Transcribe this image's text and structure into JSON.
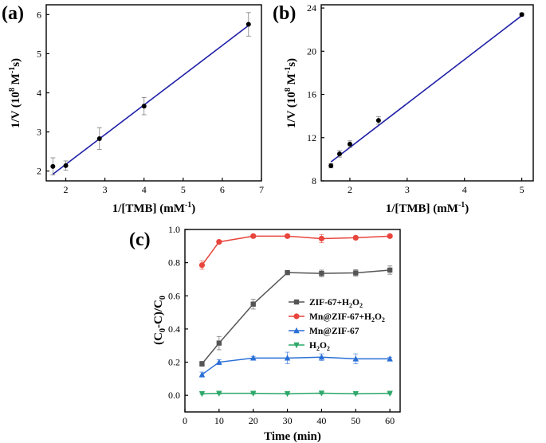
{
  "chart_data": [
    {
      "type": "scatter",
      "panel_label": "(a)",
      "xlabel": "1/[TMB] (mM",
      "xlabel_sup": "-1",
      "xlabel_end": ")",
      "ylabel": "1/V (10",
      "ylabel_sup": "8",
      "ylabel_end": " M",
      "ylabel_sup2": "-1",
      "ylabel_tail": "s)",
      "xlim": [
        1.5,
        7
      ],
      "ylim": [
        1.75,
        6.25
      ],
      "xticks": [
        2,
        3,
        4,
        5,
        6,
        7
      ],
      "yticks": [
        2,
        3,
        4,
        5,
        6
      ],
      "x": [
        1.67,
        2.0,
        2.86,
        4.0,
        6.67
      ],
      "y": [
        2.12,
        2.14,
        2.83,
        3.66,
        5.75
      ],
      "err": [
        0.22,
        0.12,
        0.28,
        0.22,
        0.3
      ],
      "fit": {
        "x": [
          1.67,
          6.67
        ],
        "y": [
          1.92,
          5.72
        ]
      },
      "colors": {
        "points": "#000000",
        "fit": "#2020a8"
      }
    },
    {
      "type": "scatter",
      "panel_label": "(b)",
      "xlabel": "1/[TMB] (mM",
      "xlabel_sup": "-1",
      "xlabel_end": ")",
      "ylabel": "1/V (10",
      "ylabel_sup": "8",
      "ylabel_end": " M",
      "ylabel_sup2": "-1",
      "ylabel_tail": "s)",
      "xlim": [
        1.5,
        5.2
      ],
      "ylim": [
        8.0,
        24.3
      ],
      "xticks": [
        2,
        3,
        4,
        5
      ],
      "yticks": [
        8,
        12,
        16,
        20,
        24
      ],
      "x": [
        1.67,
        1.82,
        2.0,
        2.5,
        5.0
      ],
      "y": [
        9.4,
        10.5,
        11.4,
        13.6,
        23.4
      ],
      "err": [
        0.2,
        0.3,
        0.3,
        0.35,
        0.15
      ],
      "fit": {
        "x": [
          1.67,
          5.0
        ],
        "y": [
          9.75,
          23.3
        ]
      },
      "colors": {
        "points": "#000000",
        "fit": "#2020a8"
      }
    },
    {
      "type": "line",
      "panel_label": "(c)",
      "xlabel": "Time (min)",
      "ylabel": "(C0-C)/C0",
      "ylabel_parts": {
        "open": "(C",
        "s1": "0",
        "mid": "-C)/C",
        "s2": "0"
      },
      "xlim": [
        0,
        63
      ],
      "ylim": [
        -0.1,
        1.0
      ],
      "xticks": [
        0,
        10,
        20,
        30,
        40,
        50,
        60
      ],
      "yticks": [
        0.0,
        0.2,
        0.4,
        0.6,
        0.8,
        1.0
      ],
      "ytick_labels": [
        "0.0",
        "0.2",
        "0.4",
        "0.6",
        "0.8",
        "1.0"
      ],
      "legend": "center-right",
      "x": [
        5,
        10,
        20,
        30,
        40,
        50,
        60
      ],
      "series": [
        {
          "name": "ZIF-67+H2O2",
          "legend_parts": {
            "main": "ZIF-67+H",
            "s1": "2",
            "mid": "O",
            "s2": "2"
          },
          "marker": "square",
          "color": "#555555",
          "values": [
            0.19,
            0.315,
            0.55,
            0.74,
            0.735,
            0.738,
            0.755
          ],
          "err": [
            0.015,
            0.04,
            0.03,
            0.01,
            0.02,
            0.02,
            0.025
          ]
        },
        {
          "name": "Mn@ZIF-67+H2O2",
          "legend_parts": {
            "main": "Mn@ZIF-67+H",
            "s1": "2",
            "mid": "O",
            "s2": "2"
          },
          "marker": "circle",
          "color": "#e8453c",
          "values": [
            0.785,
            0.925,
            0.96,
            0.96,
            0.945,
            0.95,
            0.96
          ],
          "err": [
            0.025,
            0.01,
            0.01,
            0.01,
            0.025,
            0.01,
            0.01
          ]
        },
        {
          "name": "Mn@ZIF-67",
          "legend_parts": {
            "main": "Mn@ZIF-67",
            "s1": "",
            "mid": "",
            "s2": ""
          },
          "marker": "triangle-up",
          "color": "#2a6fd6",
          "values": [
            0.125,
            0.2,
            0.225,
            0.225,
            0.23,
            0.22,
            0.22
          ],
          "err": [
            0.015,
            0.015,
            0.01,
            0.035,
            0.02,
            0.03,
            0.01
          ]
        },
        {
          "name": "H2O2",
          "legend_parts": {
            "main": "H",
            "s1": "2",
            "mid": "O",
            "s2": "2"
          },
          "marker": "triangle-down",
          "color": "#2ea86a",
          "values": [
            0.01,
            0.012,
            0.012,
            0.01,
            0.013,
            0.01,
            0.012
          ],
          "err": [
            0.005,
            0.005,
            0.005,
            0.005,
            0.005,
            0.005,
            0.005
          ]
        }
      ]
    }
  ]
}
